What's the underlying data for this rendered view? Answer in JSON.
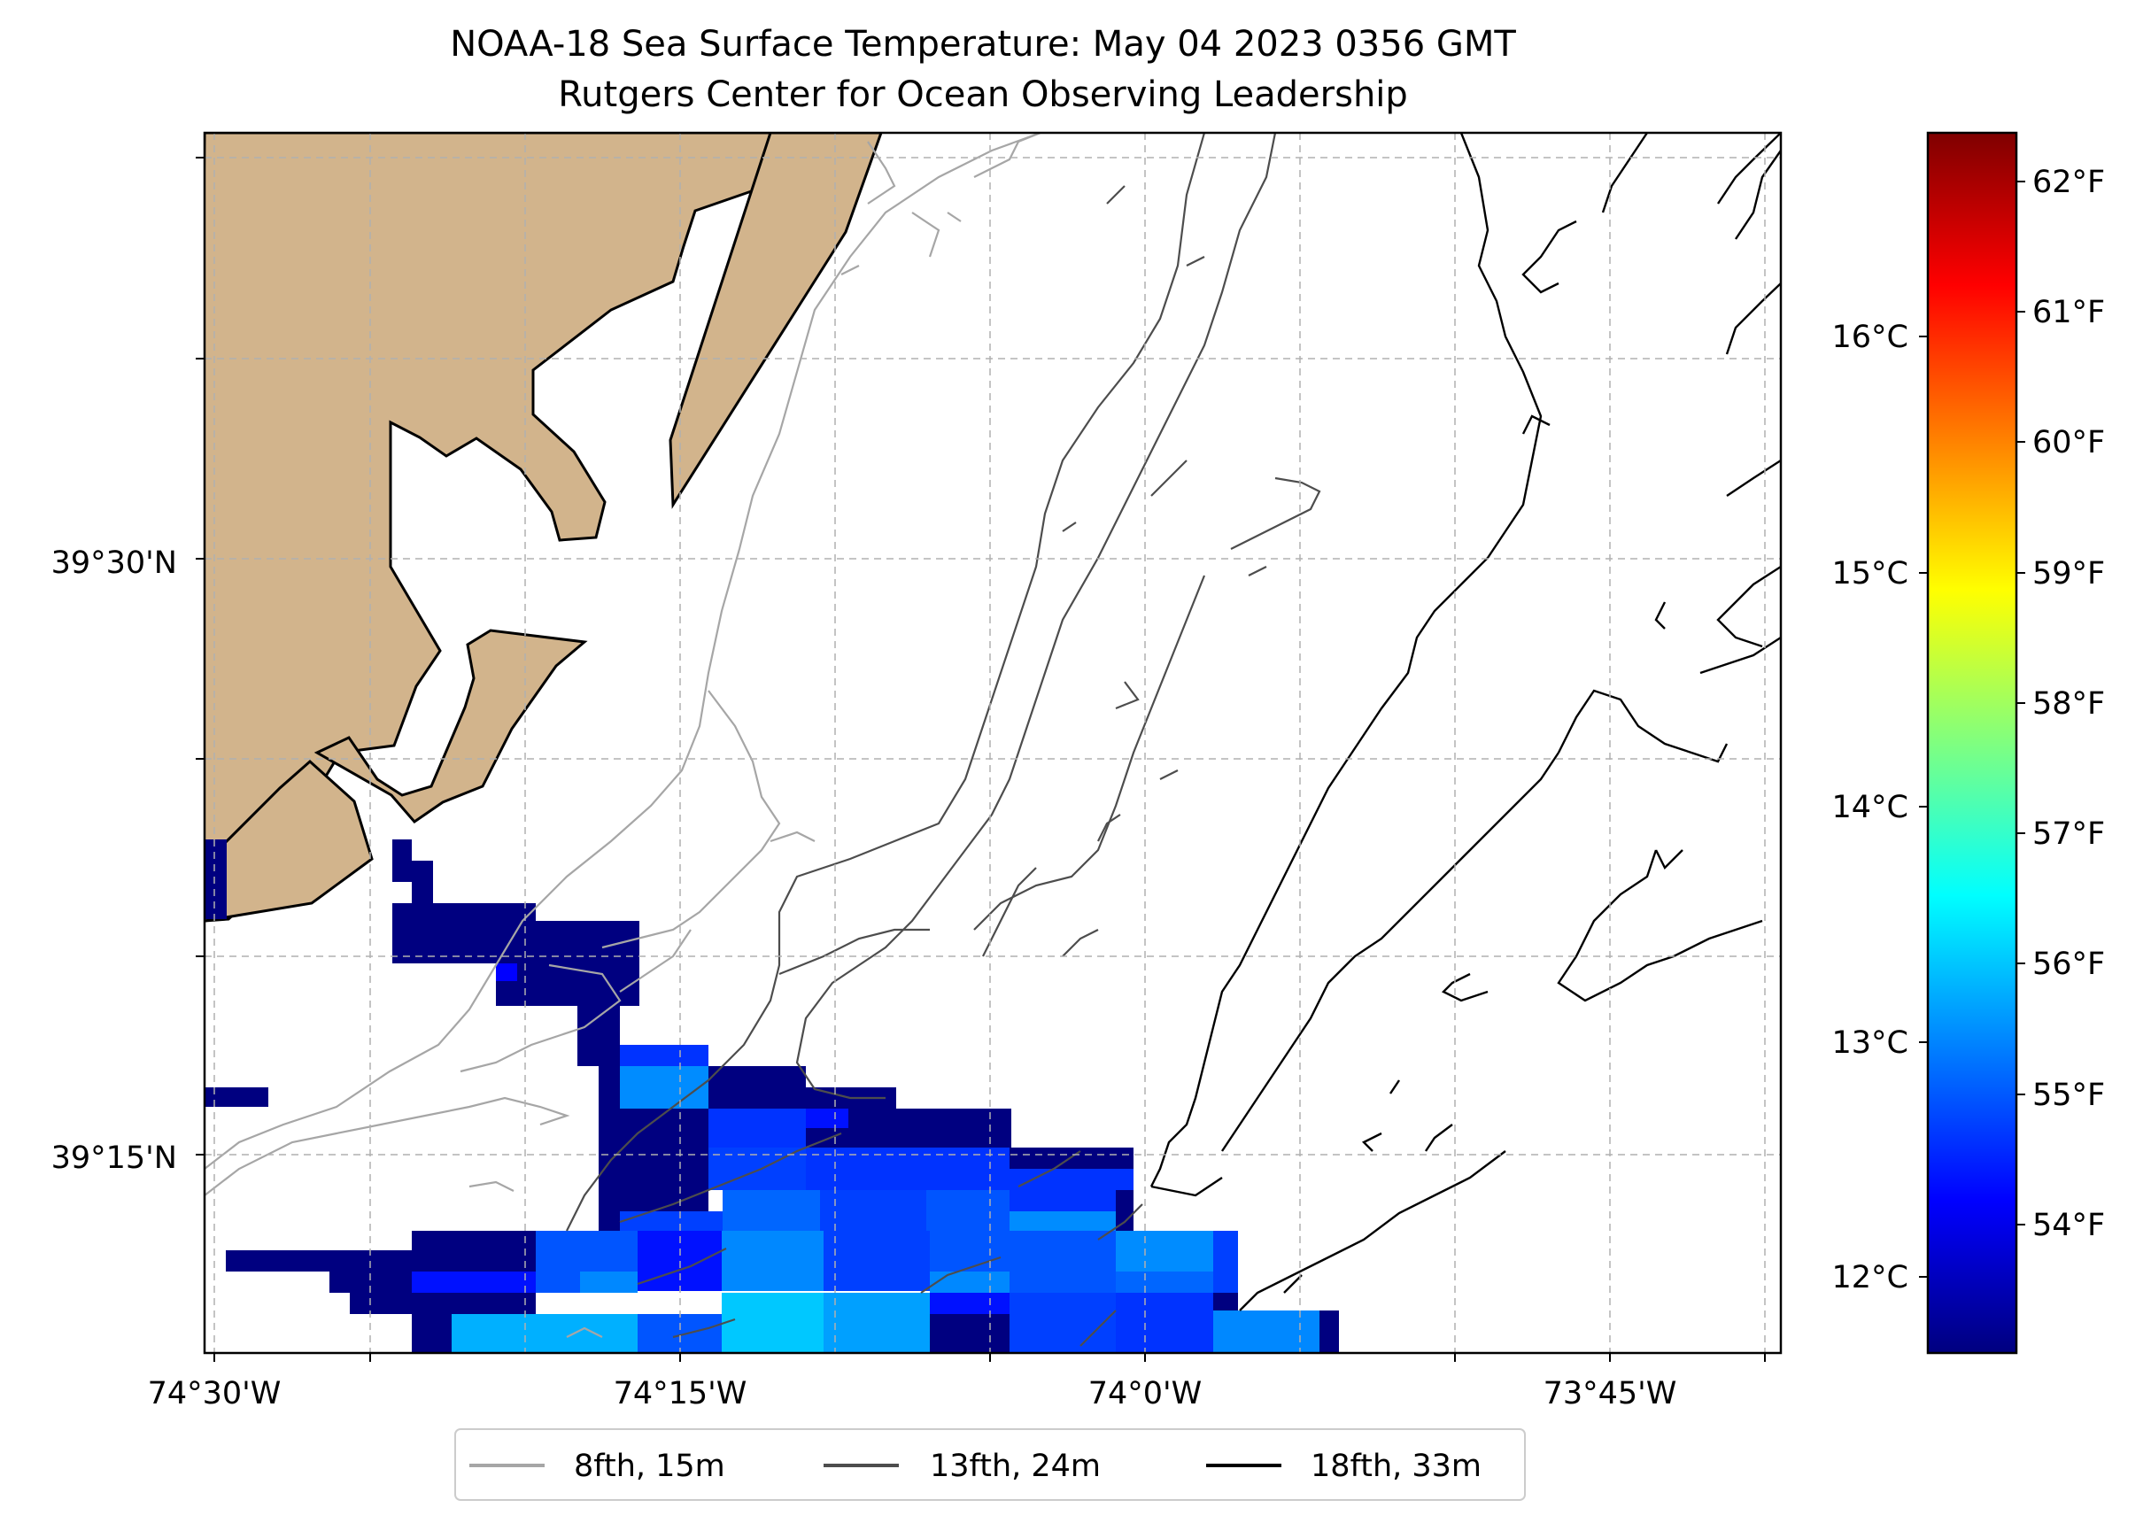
{
  "title": {
    "line1": "NOAA-18 Sea Surface Temperature: May 04 2023 0356 GMT",
    "line2": "Rutgers Center for Ocean Observing Leadership"
  },
  "map": {
    "lat_labels": [
      "39°30'N",
      "39°15'N"
    ],
    "lon_labels": [
      "74°30'W",
      "74°15'W",
      "74°0'W",
      "73°45'W"
    ],
    "land_color": "#d2b48c",
    "gridlines": true
  },
  "colorbar": {
    "celsius_ticks": [
      "16°C",
      "15°C",
      "14°C",
      "13°C",
      "12°C"
    ],
    "fahrenheit_ticks": [
      "62°F",
      "61°F",
      "60°F",
      "59°F",
      "58°F",
      "57°F",
      "56°F",
      "55°F",
      "54°F"
    ],
    "colormap": "jet"
  },
  "legend": {
    "items": [
      {
        "label": "8fth, 15m",
        "color": "#a6a6a6"
      },
      {
        "label": "13fth, 24m",
        "color": "#4d4d4d"
      },
      {
        "label": "18fth, 33m",
        "color": "#000000"
      }
    ]
  }
}
